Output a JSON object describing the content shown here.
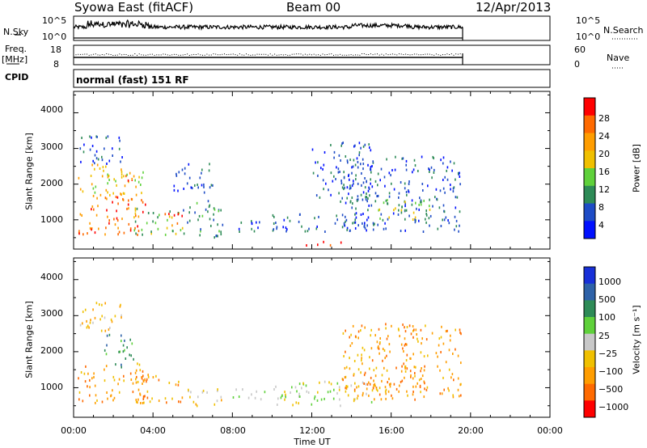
{
  "header": {
    "radar": "Syowa East (fitACF)",
    "beam": "Beam 00",
    "date": "12/Apr/2013"
  },
  "panels": {
    "nsky": {
      "label": "N.Sky",
      "ticks": [
        "10^5",
        "10^0"
      ],
      "right_ticks": [
        "10^5",
        "10^0"
      ],
      "right_label": "N.Search"
    },
    "freq": {
      "label_line1": "Freq.",
      "label_line2": "[MHz]",
      "ticks": [
        "18",
        "8"
      ],
      "right_ticks": [
        "60",
        "0"
      ],
      "right_label": "Nave"
    },
    "cpid": {
      "label": "CPID",
      "text": "normal (fast) 151 RF"
    }
  },
  "time_axis": {
    "label": "Time UT",
    "ticks": [
      "00:00",
      "04:00",
      "08:00",
      "12:00",
      "16:00",
      "20:00",
      "00:00"
    ]
  },
  "chart_data": [
    {
      "type": "heatmap",
      "name": "power",
      "ylabel": "Slant Range [km]",
      "yticks": [
        1000,
        2000,
        3000,
        4000
      ],
      "ylim": [
        180,
        4600
      ],
      "xlim_hours": [
        0,
        24
      ],
      "colorbar": {
        "label": "Power [dB]",
        "ticks": [
          "4",
          "8",
          "12",
          "16",
          "20",
          "24",
          "28"
        ],
        "colors": [
          "#0010ff",
          "#1e4cc6",
          "#2e8b57",
          "#5fd13b",
          "#f0c000",
          "#ff9d00",
          "#ff6a00",
          "#ff0000"
        ]
      },
      "regions": [
        {
          "t": [
            0.2,
            3.6
          ],
          "r": [
            600,
            1700
          ],
          "level": 6
        },
        {
          "t": [
            0.2,
            3.6
          ],
          "r": [
            1700,
            2600
          ],
          "level": 4
        },
        {
          "t": [
            2.3,
            3.0
          ],
          "r": [
            1900,
            2400
          ],
          "level": 6
        },
        {
          "t": [
            0.2,
            2.5
          ],
          "r": [
            2600,
            3400
          ],
          "level": 1
        },
        {
          "t": [
            3.0,
            5.5
          ],
          "r": [
            600,
            1400
          ],
          "level": 3
        },
        {
          "t": [
            4.5,
            5.5
          ],
          "r": [
            800,
            1200
          ],
          "level": 6
        },
        {
          "t": [
            5.5,
            7.5
          ],
          "r": [
            500,
            1600
          ],
          "level": 2
        },
        {
          "t": [
            5.0,
            7.0
          ],
          "r": [
            1700,
            2600
          ],
          "level": 1
        },
        {
          "t": [
            8.0,
            11.0
          ],
          "r": [
            700,
            1000
          ],
          "level": 1
        },
        {
          "t": [
            10.0,
            15.0
          ],
          "r": [
            700,
            1200
          ],
          "level": 1
        },
        {
          "t": [
            11.5,
            13.5
          ],
          "r": [
            280,
            420
          ],
          "level": 7
        },
        {
          "t": [
            13.5,
            19.5
          ],
          "r": [
            700,
            2800
          ],
          "level": 1
        },
        {
          "t": [
            15.0,
            18.0
          ],
          "r": [
            1000,
            1600
          ],
          "level": 3
        },
        {
          "t": [
            12.0,
            15.0
          ],
          "r": [
            1500,
            3200
          ],
          "level": 1
        }
      ]
    },
    {
      "type": "heatmap",
      "name": "velocity",
      "ylabel": "Slant Range [km]",
      "yticks": [
        1000,
        2000,
        3000,
        4000
      ],
      "ylim": [
        180,
        4600
      ],
      "xlim_hours": [
        0,
        24
      ],
      "colorbar": {
        "label": "Velocity [m s⁻¹]",
        "ticks": [
          "1000",
          "500",
          "100",
          "25",
          "−25",
          "−100",
          "−500",
          "−1000"
        ],
        "colors": [
          "#1830d8",
          "#2e62a8",
          "#2e8b57",
          "#5fd13b",
          "#c8c8c8",
          "#f0c000",
          "#ff9d00",
          "#ff6a00",
          "#ff0000"
        ]
      },
      "regions": [
        {
          "t": [
            0.2,
            3.6
          ],
          "r": [
            600,
            1700
          ],
          "level": 6
        },
        {
          "t": [
            1.5,
            3.0
          ],
          "r": [
            1600,
            2500
          ],
          "level": 2
        },
        {
          "t": [
            0.2,
            2.5
          ],
          "r": [
            2600,
            3400
          ],
          "level": 5
        },
        {
          "t": [
            3.0,
            5.5
          ],
          "r": [
            600,
            1400
          ],
          "level": 6
        },
        {
          "t": [
            5.5,
            7.5
          ],
          "r": [
            500,
            1000
          ],
          "level": 5
        },
        {
          "t": [
            8.0,
            11.0
          ],
          "r": [
            700,
            1000
          ],
          "level": 4
        },
        {
          "t": [
            10.0,
            15.0
          ],
          "r": [
            500,
            1200
          ],
          "level": 4
        },
        {
          "t": [
            13.5,
            19.5
          ],
          "r": [
            700,
            2800
          ],
          "level": 6
        },
        {
          "t": [
            15.0,
            18.0
          ],
          "r": [
            900,
            1600
          ],
          "level": 6
        }
      ]
    }
  ]
}
